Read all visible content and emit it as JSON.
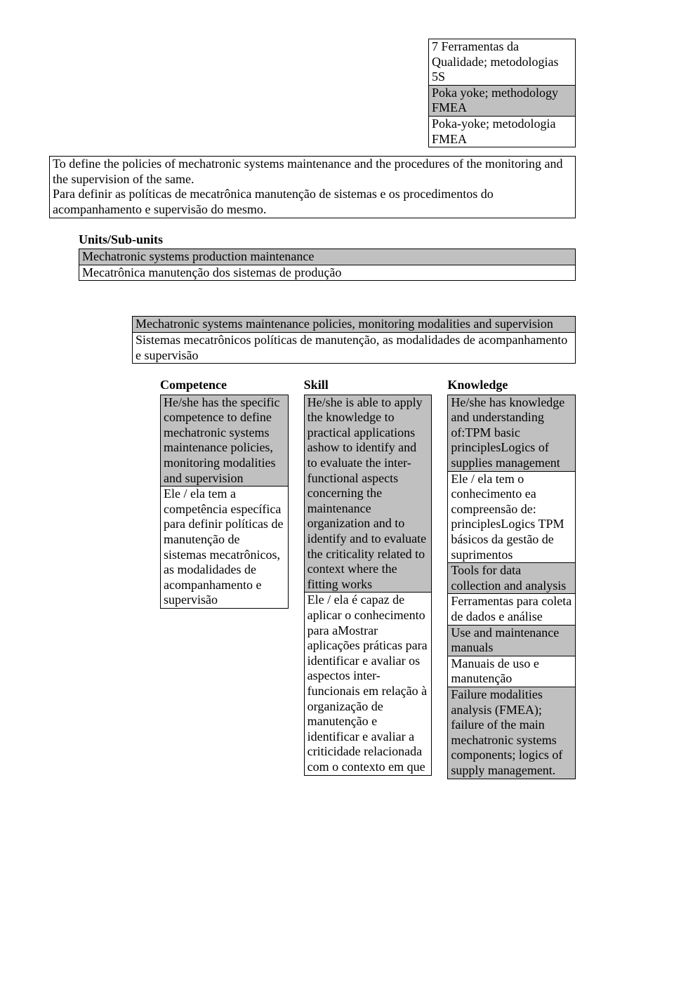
{
  "colors": {
    "shade": "#c0c0c0",
    "border": "#000000",
    "bg": "#ffffff"
  },
  "top_box": {
    "r1": "7 Ferramentas da Qualidade; metodologias 5S",
    "r2": "Poka yoke; methodology FMEA",
    "r3": "Poka-yoke; metodologia FMEA"
  },
  "full_box": {
    "r1": "To define the policies of mechatronic systems maintenance and the procedures of the monitoring and the supervision of the same.",
    "r2": "Para definir as políticas de mecatrônica manutenção de sistemas e os procedimentos do acompanhamento e supervisão do mesmo."
  },
  "units_heading": "Units/Sub-units",
  "units_box": {
    "r1": "Mechatronic systems production maintenance",
    "r2": "Mecatrônica manutenção dos sistemas de produção"
  },
  "policy_box": {
    "r1": "Mechatronic systems maintenance policies, monitoring modalities and supervision",
    "r2": "Sistemas mecatrônicos políticas de manutenção, as modalidades de acompanhamento e supervisão"
  },
  "cols": {
    "competence": {
      "h": "Competence",
      "r1": "He/she has the specific competence to define mechatronic systems maintenance policies, monitoring modalities and supervision",
      "r2": "Ele / ela tem a competência específica para definir políticas de manutenção de sistemas mecatrônicos, as modalidades de acompanhamento e supervisão"
    },
    "skill": {
      "h": "Skill",
      "r1": "He/she is able to apply the knowledge to practical applications ashow to identify and to evaluate the inter-functional aspects concerning the maintenance organization and to identify and to evaluate the criticality related to context where the fitting works",
      "r2": "Ele / ela é capaz de aplicar o conhecimento para aMostrar aplicações práticas para identificar e avaliar os aspectos inter-funcionais em relação à organização de manutenção e identificar e avaliar a criticidade relacionada com o contexto em que"
    },
    "knowledge": {
      "h": "Knowledge",
      "r1": "He/she has knowledge and understanding of:TPM basic principlesLogics of supplies management",
      "r2": "Ele / ela tem o conhecimento ea compreensão de: principlesLogics TPM básicos da gestão de suprimentos",
      "r3": "Tools for data collection and analysis",
      "r4": "Ferramentas para coleta de dados e análise",
      "r5": "Use and maintenance manuals",
      "r6": "Manuais de uso e manutenção",
      "r7": "Failure modalities analysis (FMEA); failure of the main mechatronic systems components; logics of supply management."
    }
  }
}
